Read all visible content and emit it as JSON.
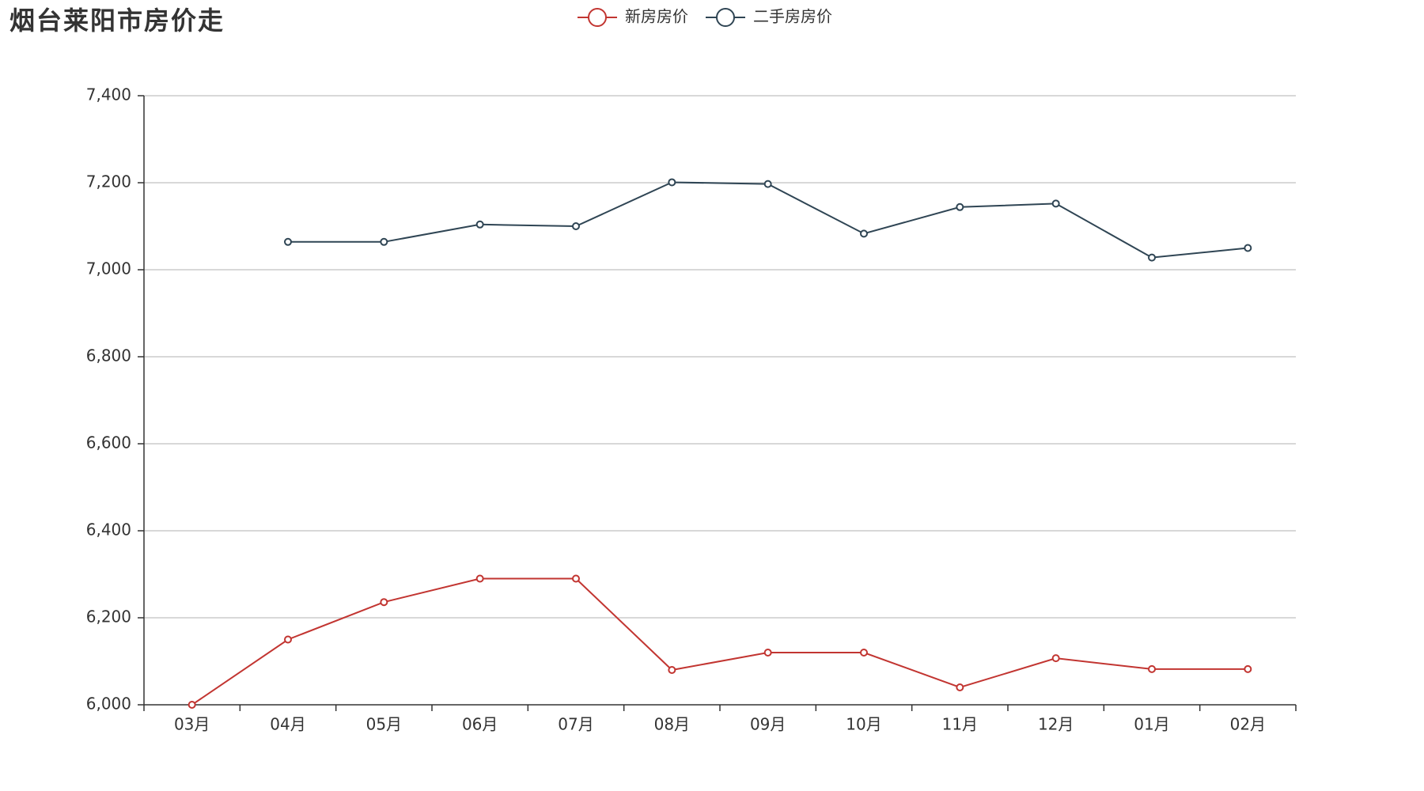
{
  "chart_data": {
    "type": "line",
    "title": "烟台莱阳市房价走",
    "categories": [
      "03月",
      "04月",
      "05月",
      "06月",
      "07月",
      "08月",
      "09月",
      "10月",
      "11月",
      "12月",
      "01月",
      "02月"
    ],
    "series": [
      {
        "name": "新房房价",
        "color": "#c23531",
        "values": [
          6000,
          6150,
          6236,
          6290,
          6290,
          6080,
          6120,
          6120,
          6040,
          6107,
          6082,
          6082
        ]
      },
      {
        "name": "二手房房价",
        "color": "#2f4554",
        "values": [
          null,
          7064,
          7064,
          7104,
          7100,
          7201,
          7197,
          7083,
          7144,
          7152,
          7028,
          7050
        ]
      }
    ],
    "ylim": [
      6000,
      7400
    ],
    "yticks": [
      {
        "value": 6000,
        "label": "6,000"
      },
      {
        "value": 6200,
        "label": "6,200"
      },
      {
        "value": 6400,
        "label": "6,400"
      },
      {
        "value": 6600,
        "label": "6,600"
      },
      {
        "value": 6800,
        "label": "6,800"
      },
      {
        "value": 7000,
        "label": "7,000"
      },
      {
        "value": 7200,
        "label": "7,200"
      },
      {
        "value": 7400,
        "label": "7,400"
      }
    ],
    "grid": true
  }
}
